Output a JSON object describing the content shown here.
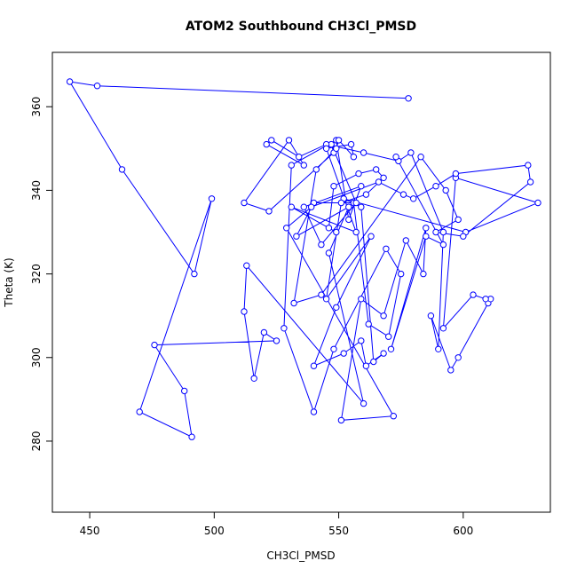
{
  "chart_data": {
    "type": "line",
    "title": "ATOM2 Southbound CH3Cl_PMSD",
    "xlabel": "CH3Cl_PMSD",
    "ylabel": "Theta (K)",
    "xlim": [
      435,
      635
    ],
    "ylim": [
      263,
      373
    ],
    "xticks": [
      450,
      500,
      550,
      600
    ],
    "yticks": [
      280,
      300,
      320,
      340,
      360
    ],
    "grid": false,
    "marker": "open-circle",
    "series": [
      {
        "color": "#0000ff",
        "x": [
          578,
          453,
          442,
          463,
          492,
          499,
          470,
          491,
          488,
          476,
          525,
          520,
          516,
          512,
          513,
          560,
          546,
          554,
          533,
          540,
          556,
          562,
          570,
          575,
          569,
          548,
          540,
          528,
          531,
          549,
          554,
          559,
          536,
          543,
          557,
          547,
          548,
          522,
          512,
          530,
          536,
          521,
          523,
          534,
          545,
          560,
          574,
          579,
          592,
          590,
          587,
          595,
          598,
          610,
          611,
          609,
          604,
          592,
          597,
          630,
          601,
          552,
          559,
          564,
          568,
          561,
          559,
          552,
          540,
          549,
          563,
          545,
          551,
          561,
          568,
          565,
          558,
          548,
          546,
          549,
          531,
          557,
          545,
          555,
          556,
          550,
          549,
          541,
          532,
          543,
          583,
          593,
          598,
          589,
          600,
          627,
          626,
          597,
          589,
          580,
          576,
          566,
          539,
          529,
          572,
          551,
          559,
          568,
          577,
          584,
          585,
          571,
          585,
          592,
          573
        ],
        "y": [
          362,
          365,
          366,
          345,
          320,
          338,
          287,
          281,
          292,
          303,
          304,
          306,
          295,
          311,
          322,
          289,
          325,
          336,
          329,
          337,
          337,
          308,
          305,
          320,
          326,
          302,
          287,
          307,
          346,
          352,
          333,
          341,
          336,
          327,
          337,
          351,
          349,
          335,
          337,
          352,
          346,
          351,
          352,
          348,
          351,
          349,
          347,
          349,
          330,
          302,
          310,
          297,
          300,
          313,
          314,
          314,
          315,
          307,
          343,
          337,
          330,
          338,
          336,
          299,
          301,
          298,
          304,
          301,
          298,
          312,
          329,
          314,
          337,
          339,
          343,
          345,
          344,
          341,
          331,
          330,
          336,
          330,
          350,
          351,
          348,
          352,
          350,
          345,
          313,
          315,
          348,
          340,
          333,
          330,
          329,
          342,
          346,
          344,
          341,
          338,
          339,
          342,
          336,
          331,
          286,
          285,
          314,
          310,
          328,
          320,
          331,
          302,
          329,
          327,
          348
        ]
      }
    ]
  }
}
